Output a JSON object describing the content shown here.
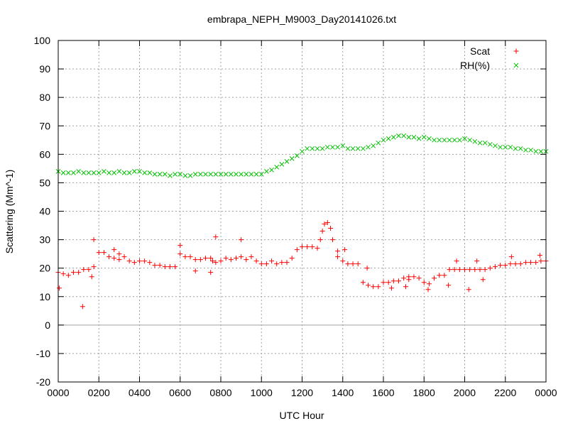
{
  "chart_data": {
    "type": "scatter",
    "title": "embrapa_NEPH_M9003_Day20141026.txt",
    "xlabel": "UTC Hour",
    "ylabel": "Scattering (Mm^-1)",
    "xlim": [
      0,
      24
    ],
    "ylim": [
      -20,
      100
    ],
    "x_ticks": [
      0,
      2,
      4,
      6,
      8,
      10,
      12,
      14,
      16,
      18,
      20,
      22,
      24
    ],
    "x_tick_labels": [
      "0000",
      "0200",
      "0400",
      "0600",
      "0800",
      "1000",
      "1200",
      "1400",
      "1600",
      "1800",
      "2000",
      "2200",
      "0000"
    ],
    "y_ticks": [
      -20,
      -10,
      0,
      10,
      20,
      30,
      40,
      50,
      60,
      70,
      80,
      90,
      100
    ],
    "grid": true,
    "legend_position": "top-right",
    "series": [
      {
        "name": "Scat",
        "color": "#ff0000",
        "marker": "plus",
        "x": [
          0.0,
          0.25,
          0.5,
          0.75,
          1.0,
          1.25,
          1.5,
          1.75,
          2.0,
          2.25,
          2.5,
          2.75,
          3.0,
          3.25,
          3.5,
          3.75,
          4.0,
          4.25,
          4.5,
          4.75,
          5.0,
          5.25,
          5.5,
          5.75,
          6.0,
          6.25,
          6.5,
          6.75,
          7.0,
          7.25,
          7.5,
          7.75,
          8.0,
          8.25,
          8.5,
          8.75,
          9.0,
          9.25,
          9.5,
          9.75,
          10.0,
          10.25,
          10.5,
          10.75,
          11.0,
          11.25,
          11.5,
          11.75,
          12.0,
          12.25,
          12.5,
          12.75,
          12.9,
          13.0,
          13.1,
          13.25,
          13.4,
          13.5,
          13.75,
          14.0,
          14.25,
          14.5,
          14.75,
          15.0,
          15.25,
          15.5,
          15.75,
          16.0,
          16.25,
          16.5,
          16.75,
          17.0,
          17.25,
          17.5,
          17.75,
          18.0,
          18.25,
          18.5,
          18.75,
          19.0,
          19.25,
          19.5,
          19.75,
          20.0,
          20.25,
          20.5,
          20.75,
          21.0,
          21.25,
          21.5,
          21.75,
          22.0,
          22.25,
          22.5,
          22.75,
          23.0,
          23.25,
          23.5,
          23.75,
          24.0,
          0.05,
          1.2,
          1.65,
          1.75,
          2.75,
          3.0,
          6.0,
          6.75,
          7.5,
          7.6,
          7.75,
          9.0,
          13.75,
          14.1,
          15.2,
          16.4,
          17.1,
          17.25,
          18.2,
          19.2,
          19.6,
          20.2,
          20.6,
          20.9,
          22.3,
          23.7
        ],
        "y": [
          18.5,
          18,
          17.5,
          18.5,
          18.5,
          19.5,
          19.5,
          20.5,
          25.5,
          25.5,
          24,
          23.5,
          23,
          24,
          22.5,
          22,
          22.5,
          22.5,
          22,
          21,
          21,
          20.5,
          20.5,
          20.5,
          25,
          24,
          24,
          23,
          23,
          23.5,
          23.5,
          22,
          22.5,
          23.5,
          23,
          23.5,
          24,
          23,
          24,
          22.5,
          21.5,
          21.5,
          22.5,
          21.5,
          22,
          22,
          23.5,
          26.5,
          27.5,
          27.5,
          27.5,
          27,
          30,
          33,
          35.5,
          36,
          34,
          30,
          26,
          22.5,
          21.5,
          21.5,
          21.5,
          15,
          14,
          13.5,
          13.5,
          15,
          15,
          15.5,
          15.5,
          16.5,
          17,
          17,
          16.5,
          15,
          14.5,
          16.5,
          17.5,
          17.5,
          19.5,
          19.5,
          19.5,
          19.5,
          19.5,
          19.5,
          19.5,
          19.5,
          20,
          20.5,
          21,
          21,
          21.5,
          21.5,
          21.5,
          22,
          22,
          22,
          22.5,
          22.5,
          13,
          6.5,
          17,
          30,
          26.5,
          25,
          28,
          19,
          18.5,
          22.5,
          31,
          30,
          24,
          26.5,
          20,
          13,
          13.5,
          16,
          12.5,
          14,
          22.5,
          12.5,
          22.5,
          16,
          24,
          24.5
        ]
      },
      {
        "name": "RH(%)",
        "color": "#00c000",
        "marker": "cross",
        "x": [
          0.0,
          0.25,
          0.5,
          0.75,
          1.0,
          1.25,
          1.5,
          1.75,
          2.0,
          2.25,
          2.5,
          2.75,
          3.0,
          3.25,
          3.5,
          3.75,
          4.0,
          4.25,
          4.5,
          4.75,
          5.0,
          5.25,
          5.5,
          5.75,
          6.0,
          6.25,
          6.5,
          6.75,
          7.0,
          7.25,
          7.5,
          7.75,
          8.0,
          8.25,
          8.5,
          8.75,
          9.0,
          9.25,
          9.5,
          9.75,
          10.0,
          10.25,
          10.5,
          10.75,
          11.0,
          11.25,
          11.5,
          11.75,
          12.0,
          12.25,
          12.5,
          12.75,
          13.0,
          13.25,
          13.5,
          13.75,
          14.0,
          14.25,
          14.5,
          14.75,
          15.0,
          15.25,
          15.5,
          15.75,
          16.0,
          16.25,
          16.5,
          16.75,
          17.0,
          17.25,
          17.5,
          17.75,
          18.0,
          18.25,
          18.5,
          18.75,
          19.0,
          19.25,
          19.5,
          19.75,
          20.0,
          20.25,
          20.5,
          20.75,
          21.0,
          21.25,
          21.5,
          21.75,
          22.0,
          22.25,
          22.5,
          22.75,
          23.0,
          23.25,
          23.5,
          23.75,
          24.0
        ],
        "y": [
          54,
          53.5,
          53.5,
          53.5,
          54,
          53.5,
          53.5,
          53.5,
          53.5,
          54,
          53.5,
          53.5,
          54,
          53.5,
          53.5,
          54,
          54,
          53.5,
          53.5,
          53,
          53,
          53,
          52.5,
          53,
          53,
          52.5,
          52.5,
          53,
          53,
          53,
          53,
          53,
          53,
          53,
          53,
          53,
          53,
          53,
          53,
          53,
          53,
          54,
          54.5,
          55.5,
          56.5,
          57.5,
          58.5,
          59.5,
          61,
          62,
          62,
          62,
          62,
          62.5,
          62.5,
          62.5,
          63,
          62,
          62,
          62,
          62,
          62.5,
          63,
          64,
          65,
          65.5,
          66,
          66.5,
          66.5,
          66,
          66,
          65.5,
          66,
          65.5,
          65,
          65,
          65,
          65,
          65,
          65,
          65.5,
          65,
          64.5,
          64,
          64,
          63.5,
          63,
          62.5,
          62.5,
          62.5,
          62,
          62,
          61.5,
          61.5,
          61,
          61,
          61
        ]
      }
    ]
  }
}
